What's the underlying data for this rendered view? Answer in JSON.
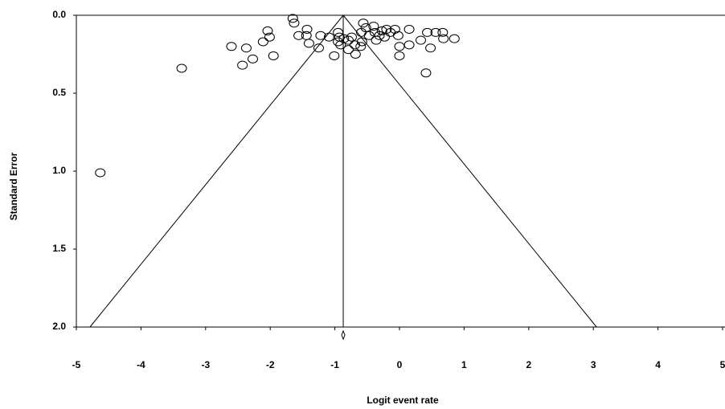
{
  "chart_data": {
    "type": "scatter",
    "x_label": "Logit event rate",
    "y_label": "Standard Error",
    "xlim": [
      -5,
      5
    ],
    "xticks": [
      -5,
      -4,
      -3,
      -2,
      -1,
      0,
      1,
      2,
      3,
      4,
      5
    ],
    "ylim": [
      0,
      2
    ],
    "y_inverted": true,
    "yticks": [
      {
        "value": 0,
        "label": "0.0"
      },
      {
        "value": 0.5,
        "label": "0.5"
      },
      {
        "value": 1,
        "label": "1.0"
      },
      {
        "value": 1.5,
        "label": "1.5"
      },
      {
        "value": 2,
        "label": "2.0"
      }
    ],
    "marker": "open-circle",
    "color": "#000000",
    "funnel": {
      "apex": -0.87,
      "left": -4.79,
      "right": 3.05
    },
    "x": [
      -1.65,
      -1.63,
      -2.04,
      -2.01,
      -2.6,
      -2.37,
      -2.27,
      -2.11,
      -2.43,
      -1.95,
      -3.37,
      -4.63,
      -1.43,
      -1.44,
      -1.56,
      -1.4,
      -1.22,
      -1.25,
      -1.09,
      -1.01,
      -0.95,
      -0.93,
      -0.95,
      -0.86,
      -0.91,
      -0.79,
      -0.74,
      -0.79,
      -0.68,
      -0.59,
      -0.56,
      -0.58,
      -0.47,
      -0.4,
      -0.38,
      -0.36,
      -0.31,
      -0.27,
      -0.23,
      -0.2,
      -0.14,
      -0.07,
      -0.02,
      0,
      0,
      0.15,
      0.15,
      0.33,
      0.43,
      0.48,
      0.41,
      0.56,
      0.67,
      0.68,
      0.85,
      -0.52,
      -0.69,
      -0.6
    ],
    "y": [
      0.02,
      0.05,
      0.1,
      0.14,
      0.2,
      0.21,
      0.28,
      0.17,
      0.32,
      0.26,
      0.34,
      1.01,
      0.09,
      0.13,
      0.13,
      0.18,
      0.13,
      0.21,
      0.14,
      0.26,
      0.11,
      0.14,
      0.17,
      0.15,
      0.19,
      0.16,
      0.14,
      0.22,
      0.25,
      0.11,
      0.05,
      0.17,
      0.13,
      0.07,
      0.11,
      0.16,
      0.13,
      0.1,
      0.14,
      0.09,
      0.11,
      0.09,
      0.13,
      0.2,
      0.26,
      0.19,
      0.09,
      0.16,
      0.11,
      0.21,
      0.37,
      0.11,
      0.11,
      0.15,
      0.15,
      0.08,
      0.19,
      0.2
    ]
  }
}
